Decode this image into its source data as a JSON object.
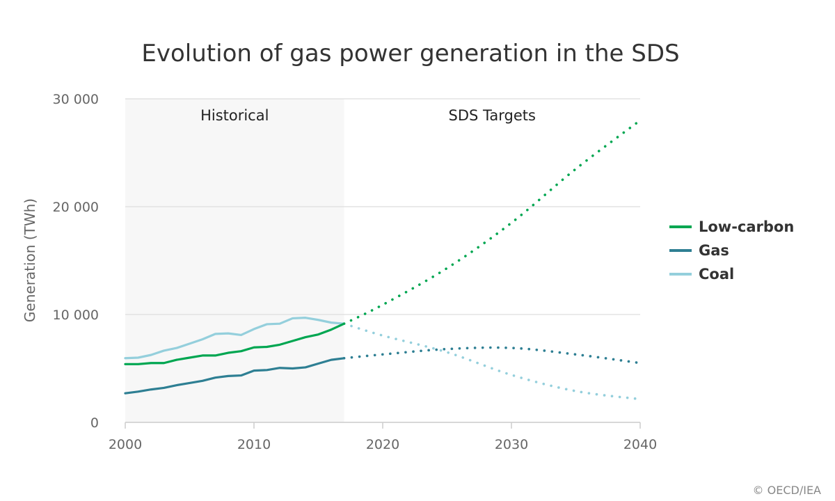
{
  "chart_data": {
    "type": "line",
    "title": "Evolution of gas power generation in the SDS",
    "ylabel": "Generation (TWh)",
    "xlabel": "",
    "xlim": [
      2000,
      2040
    ],
    "ylim": [
      0,
      30000
    ],
    "x_ticks": [
      2000,
      2010,
      2020,
      2030,
      2040
    ],
    "x_tick_labels": [
      "2000",
      "2010",
      "2020",
      "2030",
      "2040"
    ],
    "y_ticks": [
      0,
      10000,
      20000,
      30000
    ],
    "y_tick_labels": [
      "0",
      "10 000",
      "20 000",
      "30 000"
    ],
    "grid": true,
    "legend_position": "right",
    "regions": [
      {
        "label": "Historical",
        "from": 2000,
        "to": 2017,
        "color": "#f7f7f7"
      },
      {
        "label": "SDS Targets",
        "from": 2017,
        "to": 2040,
        "color": "#ffffff"
      }
    ],
    "series": [
      {
        "name": "Low-carbon",
        "color": "#00a651",
        "historical": {
          "x": [
            2000,
            2001,
            2002,
            2003,
            2004,
            2005,
            2006,
            2007,
            2008,
            2009,
            2010,
            2011,
            2012,
            2013,
            2014,
            2015,
            2016,
            2017
          ],
          "y": [
            5400,
            5400,
            5500,
            5500,
            5800,
            6000,
            6200,
            6200,
            6450,
            6600,
            6950,
            7000,
            7200,
            7550,
            7900,
            8150,
            8600,
            9150
          ]
        },
        "projection": {
          "x": [
            2017,
            2020,
            2025,
            2030,
            2035,
            2040
          ],
          "y": [
            9150,
            10900,
            14300,
            18500,
            23500,
            28000
          ]
        }
      },
      {
        "name": "Gas",
        "color": "#2e7f93",
        "historical": {
          "x": [
            2000,
            2001,
            2002,
            2003,
            2004,
            2005,
            2006,
            2007,
            2008,
            2009,
            2010,
            2011,
            2012,
            2013,
            2014,
            2015,
            2016,
            2017
          ],
          "y": [
            2700,
            2850,
            3050,
            3200,
            3450,
            3650,
            3850,
            4150,
            4300,
            4350,
            4800,
            4850,
            5050,
            5000,
            5100,
            5450,
            5800,
            5950
          ]
        },
        "projection": {
          "x": [
            2017,
            2020,
            2025,
            2030,
            2035,
            2040
          ],
          "y": [
            5950,
            6300,
            6800,
            6900,
            6300,
            5500
          ]
        }
      },
      {
        "name": "Coal",
        "color": "#94cfdc",
        "historical": {
          "x": [
            2000,
            2001,
            2002,
            2003,
            2004,
            2005,
            2006,
            2007,
            2008,
            2009,
            2010,
            2011,
            2012,
            2013,
            2014,
            2015,
            2016,
            2017
          ],
          "y": [
            5950,
            6000,
            6250,
            6650,
            6900,
            7300,
            7700,
            8200,
            8250,
            8100,
            8650,
            9100,
            9150,
            9650,
            9700,
            9500,
            9250,
            9150
          ]
        },
        "projection": {
          "x": [
            2017,
            2020,
            2025,
            2030,
            2035,
            2040
          ],
          "y": [
            9150,
            8050,
            6500,
            4400,
            2900,
            2150
          ]
        }
      }
    ],
    "credit": "© OECD/IEA"
  }
}
